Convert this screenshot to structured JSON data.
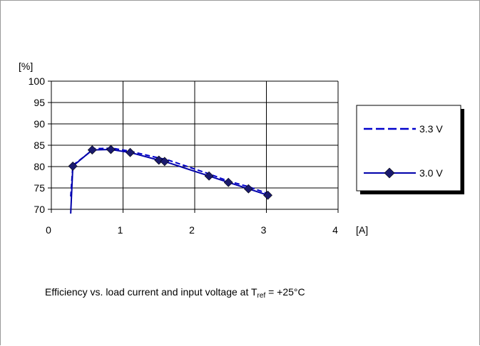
{
  "chart_data": {
    "type": "line",
    "ylabel": "[%]",
    "xlabel": "[A]",
    "xlim": [
      0,
      4
    ],
    "ylim": [
      70,
      100
    ],
    "x_ticks": [
      "0",
      "1",
      "2",
      "3",
      "4"
    ],
    "y_ticks": [
      "70",
      "75",
      "80",
      "85",
      "90",
      "95",
      "100"
    ],
    "grid": true,
    "legend_position": "right",
    "series": [
      {
        "name": "3.3 V",
        "style": "dashed",
        "color": "#0000cc",
        "x": [
          0.27,
          0.3,
          0.6,
          0.85,
          1.1,
          1.5,
          1.6,
          2.2,
          2.47,
          2.75,
          3.0
        ],
        "y": [
          73.0,
          80.3,
          84.2,
          84.3,
          83.6,
          82.0,
          81.7,
          78.3,
          76.6,
          75.3,
          73.8
        ]
      },
      {
        "name": "3.0 V",
        "style": "solid-diamond",
        "color": "#0000aa",
        "marker_color": "#1a1a6e",
        "x": [
          0.27,
          0.3,
          0.57,
          0.83,
          1.1,
          1.5,
          1.58,
          2.2,
          2.47,
          2.75,
          3.02
        ],
        "y": [
          69.0,
          80.1,
          83.9,
          84.0,
          83.3,
          81.5,
          81.2,
          77.8,
          76.3,
          74.8,
          73.3
        ],
        "marker_from_index": 1
      }
    ]
  },
  "caption": {
    "main": "Efficiency vs. load current and input voltage at T",
    "sub": "ref",
    "tail": " = +25°C"
  }
}
